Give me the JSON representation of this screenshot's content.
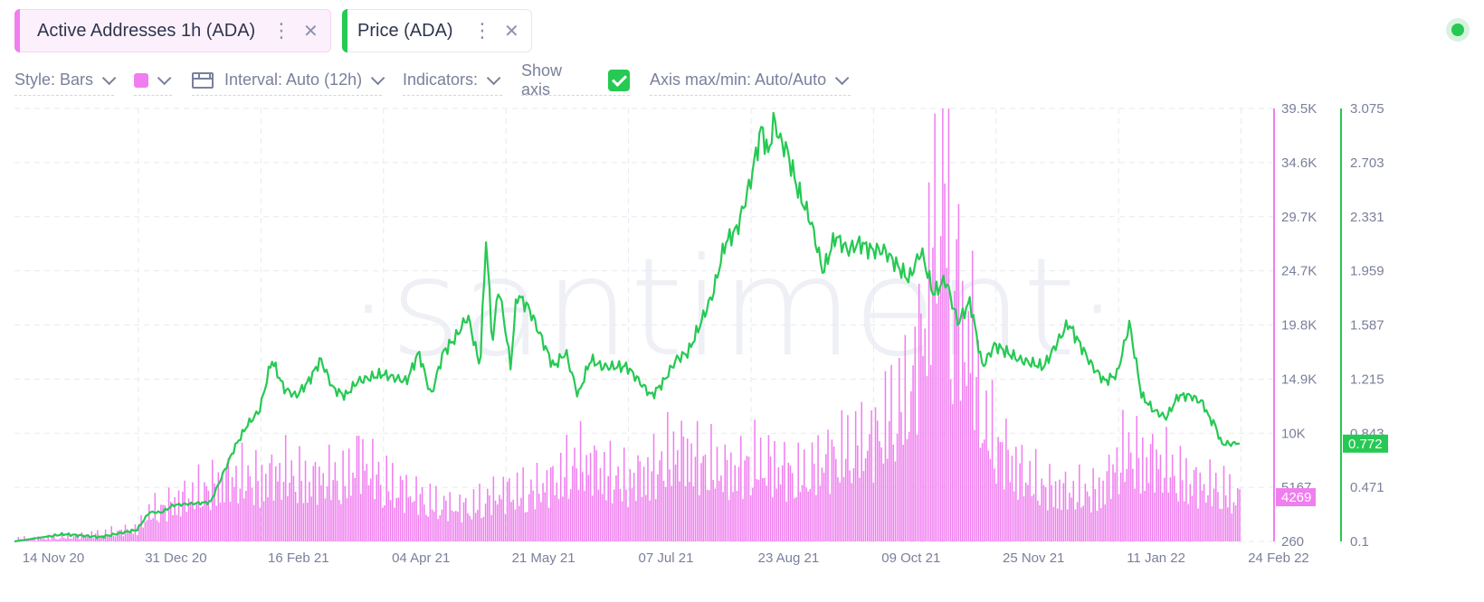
{
  "metric_chips": [
    {
      "label": "Active Addresses 1h (ADA)",
      "color": "#f07ef0",
      "bg": "#fdf0fd"
    },
    {
      "label": "Price (ADA)",
      "color": "#26c953",
      "bg": "#ffffff"
    }
  ],
  "toolbar": {
    "style_label": "Style: Bars",
    "interval_label": "Interval: Auto (12h)",
    "indicators_label": "Indicators:",
    "show_axis_label": "Show axis",
    "axis_maxmin_label": "Axis max/min: Auto/Auto"
  },
  "watermark": "·santiment·",
  "chart_data": {
    "type": "bar+line",
    "x_ticks": [
      "14 Nov 20",
      "31 Dec 20",
      "16 Feb 21",
      "04 Apr 21",
      "21 May 21",
      "07 Jul 21",
      "23 Aug 21",
      "09 Oct 21",
      "25 Nov 21",
      "11 Jan 22",
      "24 Feb 22"
    ],
    "y_left_ticks": [
      "39.5K",
      "34.6K",
      "29.7K",
      "24.7K",
      "19.8K",
      "14.9K",
      "10K",
      "5167",
      "260"
    ],
    "y_right_ticks": [
      "3.075",
      "2.703",
      "2.331",
      "1.959",
      "1.587",
      "1.215",
      "0.843",
      "0.471",
      "0.1"
    ],
    "y_left_range": [
      260,
      39500
    ],
    "y_right_range": [
      0.1,
      3.075
    ],
    "grid": true,
    "series": [
      {
        "name": "Active Addresses 1h (ADA)",
        "type": "bar",
        "color": "#f07ef0",
        "axis": "left",
        "last_value_label": "4269",
        "x_frac": [
          0.0,
          0.04,
          0.07,
          0.1,
          0.11,
          0.13,
          0.15,
          0.17,
          0.19,
          0.2,
          0.22,
          0.24,
          0.26,
          0.27,
          0.28,
          0.3,
          0.32,
          0.34,
          0.36,
          0.37,
          0.38,
          0.4,
          0.42,
          0.44,
          0.46,
          0.48,
          0.5,
          0.52,
          0.54,
          0.56,
          0.57,
          0.58,
          0.59,
          0.6,
          0.62,
          0.63,
          0.64,
          0.65,
          0.66,
          0.68,
          0.7,
          0.72,
          0.73,
          0.74,
          0.75,
          0.76,
          0.765,
          0.77,
          0.775,
          0.78,
          0.785,
          0.79,
          0.8,
          0.82,
          0.84,
          0.86,
          0.88,
          0.89,
          0.9,
          0.91,
          0.92,
          0.93,
          0.94,
          0.95,
          0.96,
          0.97,
          0.98,
          0.99,
          1.0
        ],
        "values": [
          500,
          700,
          1000,
          1500,
          3000,
          4000,
          5000,
          6000,
          6500,
          6000,
          7000,
          6000,
          6500,
          6000,
          8500,
          6000,
          5000,
          4000,
          3500,
          3500,
          4000,
          5000,
          5000,
          6000,
          8000,
          7000,
          6000,
          7000,
          9000,
          8000,
          7500,
          7000,
          7000,
          8000,
          7500,
          7000,
          6500,
          7000,
          8000,
          9000,
          10000,
          13000,
          14000,
          20000,
          28000,
          40000,
          18000,
          30000,
          15000,
          25000,
          15000,
          12000,
          10000,
          7000,
          5500,
          5000,
          5000,
          5500,
          8000,
          9000,
          8000,
          8000,
          7500,
          6500,
          6000,
          5500,
          5500,
          5000,
          4269
        ]
      },
      {
        "name": "Price (ADA)",
        "type": "line",
        "color": "#26c953",
        "axis": "right",
        "last_value_label": "0.772",
        "x_frac": [
          0.0,
          0.04,
          0.07,
          0.1,
          0.11,
          0.12,
          0.13,
          0.16,
          0.18,
          0.19,
          0.2,
          0.21,
          0.22,
          0.23,
          0.24,
          0.25,
          0.26,
          0.27,
          0.28,
          0.3,
          0.32,
          0.33,
          0.34,
          0.35,
          0.36,
          0.37,
          0.38,
          0.385,
          0.39,
          0.395,
          0.4,
          0.405,
          0.41,
          0.42,
          0.43,
          0.44,
          0.45,
          0.46,
          0.47,
          0.48,
          0.49,
          0.5,
          0.52,
          0.53,
          0.54,
          0.55,
          0.56,
          0.57,
          0.58,
          0.59,
          0.6,
          0.61,
          0.615,
          0.62,
          0.625,
          0.63,
          0.64,
          0.65,
          0.66,
          0.67,
          0.68,
          0.69,
          0.7,
          0.71,
          0.72,
          0.73,
          0.74,
          0.75,
          0.76,
          0.77,
          0.78,
          0.79,
          0.8,
          0.82,
          0.84,
          0.86,
          0.88,
          0.89,
          0.9,
          0.91,
          0.92,
          0.93,
          0.94,
          0.95,
          0.96,
          0.97,
          0.975,
          0.98,
          0.985
        ],
        "values": [
          0.1,
          0.15,
          0.13,
          0.18,
          0.3,
          0.3,
          0.35,
          0.37,
          0.75,
          0.9,
          1.0,
          1.35,
          1.15,
          1.1,
          1.2,
          1.35,
          1.15,
          1.1,
          1.2,
          1.25,
          1.2,
          1.4,
          1.1,
          1.4,
          1.5,
          1.65,
          1.3,
          2.2,
          1.45,
          1.85,
          1.6,
          1.3,
          1.8,
          1.7,
          1.5,
          1.3,
          1.4,
          1.1,
          1.35,
          1.3,
          1.3,
          1.3,
          1.1,
          1.2,
          1.35,
          1.4,
          1.6,
          1.8,
          2.15,
          2.25,
          2.55,
          2.95,
          2.75,
          3.0,
          2.85,
          2.8,
          2.5,
          2.3,
          1.95,
          2.2,
          2.1,
          2.15,
          2.1,
          2.1,
          2.0,
          1.9,
          2.1,
          1.8,
          1.9,
          1.6,
          1.75,
          1.3,
          1.45,
          1.35,
          1.3,
          1.6,
          1.3,
          1.2,
          1.25,
          1.6,
          1.1,
          1.0,
          0.95,
          1.1,
          1.1,
          1.05,
          0.95,
          0.9,
          0.772
        ]
      }
    ]
  }
}
